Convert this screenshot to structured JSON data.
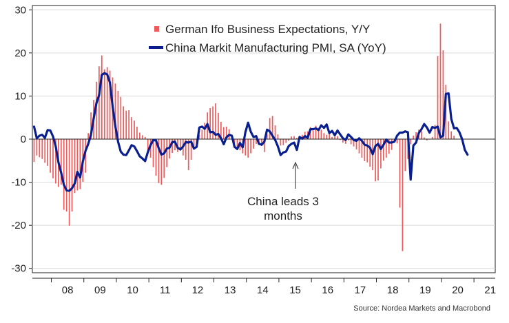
{
  "chart_data": {
    "type": "bar+line",
    "source": "Source: Nordea Markets and Macrobond",
    "annotation": [
      "China leads 3",
      "months"
    ],
    "x_labels": [
      "08",
      "09",
      "10",
      "11",
      "12",
      "13",
      "14",
      "15",
      "16",
      "17",
      "18",
      "19",
      "20",
      "21"
    ],
    "y_ticks": [
      30,
      20,
      10,
      0,
      -10,
      -20,
      -30
    ],
    "ylim": [
      -31,
      31
    ],
    "grid": "horizontal",
    "legend_position": "top-right",
    "series": [
      {
        "name": "German Ifo Business Expectations, Y/Y",
        "kind": "bar",
        "color": "#f05a5a",
        "start": "2007-06",
        "values": [
          -5.3,
          -3.8,
          -4.2,
          -4.6,
          -5.5,
          -6.2,
          -7.8,
          -9.1,
          -10.3,
          -11.1,
          -10.6,
          -16.4,
          -16.8,
          -20.1,
          -16.8,
          -12.5,
          -11.9,
          -11.6,
          -9.9,
          -7.8,
          1.4,
          6.2,
          9.1,
          13.3,
          16.9,
          19.4,
          16.2,
          16.7,
          15.9,
          14.3,
          12.9,
          11.2,
          9.8,
          7.6,
          6.6,
          6.7,
          5.1,
          4.3,
          2.9,
          1.5,
          0.9,
          0.5,
          -2.8,
          -4.3,
          -6.5,
          -8.5,
          -10.2,
          -10.6,
          -9.0,
          -6.5,
          -4.5,
          -3.2,
          -2.6,
          -3.0,
          -2.6,
          -3.8,
          -4.8,
          -7.2,
          -4.8,
          -2.4,
          -1.0,
          1.0,
          2.2,
          3.8,
          6.2,
          7.2,
          7.6,
          8.3,
          6.1,
          4.0,
          2.8,
          2.9,
          2.3,
          1.0,
          -1.0,
          -2.2,
          -2.6,
          -3.3,
          -3.8,
          -4.3,
          -3.3,
          -2.2,
          -1.1,
          -0.7,
          -1.6,
          -3.0,
          1.2,
          4.9,
          5.4,
          3.2,
          1.1,
          -1.5,
          -1.4,
          -0.9,
          -0.4,
          0.6,
          0.7,
          0.3,
          0.6,
          1.0,
          1.7,
          1.8,
          2.8,
          2.0,
          3.1,
          2.1,
          2.2,
          1.4,
          1.0,
          1.3,
          0.5,
          0.6,
          0.7,
          -0.2,
          -0.8,
          -1.1,
          -0.3,
          -1.2,
          -1.7,
          -2.4,
          -3.3,
          -4.3,
          -5.1,
          -5.4,
          -6.4,
          -7.2,
          -9.8,
          -9.6,
          -6.8,
          -5.0,
          -4.3,
          -3.4,
          -2.5,
          -0.7,
          -1.0,
          -15.9,
          -26.0,
          -7.4,
          -4.6,
          -1.2,
          0.8,
          1.6,
          2.2,
          1.8,
          0.4,
          -0.3,
          -0.1,
          0.5,
          3.3,
          19.3,
          26.8,
          20.6,
          12.6,
          4.1,
          1.8,
          0.8
        ]
      },
      {
        "name": "China Markit Manufacturing PMI, SA (YoY)",
        "kind": "line",
        "color": "#0a1f8f",
        "start": "2007-06",
        "values": [
          2.9,
          0.2,
          0.8,
          1.0,
          0.3,
          2.1,
          2.0,
          0.6,
          -1.7,
          -5.4,
          -7.8,
          -10.6,
          -11.9,
          -12.0,
          -11.4,
          -10.3,
          -7.6,
          -8.9,
          -5.2,
          -2.7,
          -1.1,
          1.0,
          4.8,
          8.3,
          10.2,
          14.9,
          15.3,
          15.0,
          13.1,
          7.6,
          3.0,
          -0.6,
          -2.9,
          -3.6,
          -3.7,
          -2.6,
          -1.4,
          -1.7,
          -2.8,
          -4.0,
          -4.5,
          -5.1,
          -3.0,
          -1.4,
          -0.2,
          -0.3,
          -2.1,
          -3.6,
          -3.3,
          -2.2,
          -2.0,
          -0.7,
          -0.6,
          -2.0,
          -2.4,
          -1.7,
          -0.7,
          -0.8,
          -0.6,
          -2.2,
          -1.8,
          2.7,
          2.9,
          2.4,
          3.5,
          1.6,
          1.7,
          1.0,
          1.2,
          0.2,
          -1.2,
          0.4,
          1.0,
          0.8,
          -1.8,
          -2.3,
          -0.9,
          -1.9,
          1.6,
          3.8,
          1.7,
          0.5,
          0.7,
          -1.1,
          -1.3,
          -0.6,
          2.2,
          1.8,
          0.8,
          -0.2,
          -1.7,
          -3.7,
          -3.1,
          -2.9,
          -1.6,
          -1.1,
          -0.8,
          -2.5,
          0.5,
          0.1,
          0.7,
          0.3,
          2.3,
          2.3,
          2.5,
          2.1,
          3.2,
          2.6,
          3.4,
          1.4,
          1.9,
          0.9,
          2.0,
          1.1,
          0.2,
          -0.2,
          1.1,
          0.5,
          -0.2,
          -0.4,
          0.2,
          -0.4,
          -1.3,
          -1.5,
          -2.0,
          -3.5,
          -1.6,
          -1.1,
          -2.3,
          -1.3,
          -0.1,
          -0.8,
          -0.8,
          -0.6,
          0.8,
          1.5,
          1.5,
          1.8,
          1.6,
          -9.4,
          -1.5,
          -0.8,
          1.4,
          2.3,
          3.5,
          2.7,
          1.5,
          2.8,
          2.6,
          2.9,
          0.4,
          0.8,
          10.5,
          10.6,
          4.7,
          2.5,
          2.6,
          1.6,
          0.0,
          -2.5,
          -3.6
        ]
      }
    ]
  }
}
